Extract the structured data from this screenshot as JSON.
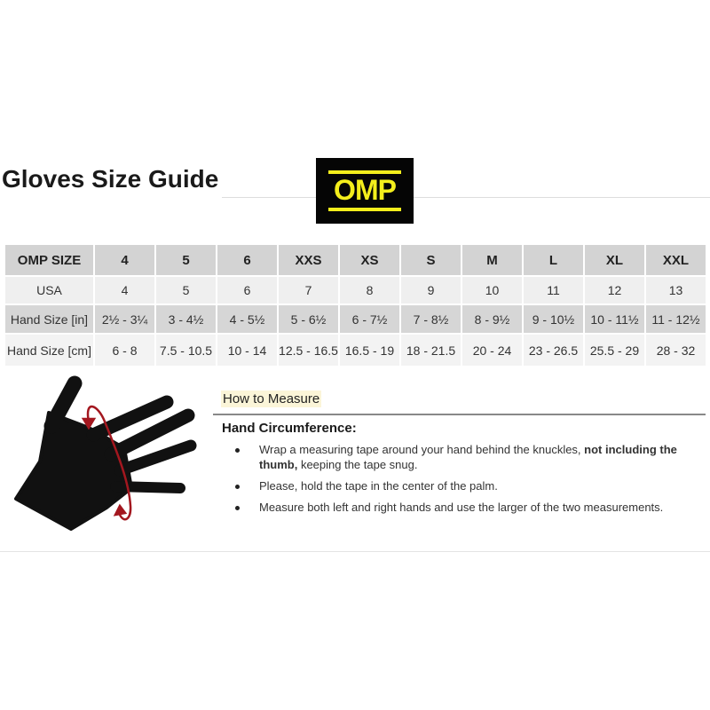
{
  "title": "Gloves Size Guide",
  "logo": {
    "text": "OMP",
    "bg": "#050505",
    "color": "#f4ee1c"
  },
  "table": {
    "header": [
      "OMP SIZE",
      "4",
      "5",
      "6",
      "XXS",
      "XS",
      "S",
      "M",
      "L",
      "XL",
      "XXL"
    ],
    "rows": [
      [
        "USA",
        "4",
        "5",
        "6",
        "7",
        "8",
        "9",
        "10",
        "11",
        "12",
        "13"
      ],
      [
        "Hand Size [in]",
        "2½ - 3¼",
        "3 - 4½",
        "4 - 5½",
        "5 - 6½",
        "6 - 7½",
        "7 - 8½",
        "8 - 9½",
        "9 - 10½",
        "10 - 11½",
        "11 - 12½"
      ],
      [
        "Hand Size [cm]",
        "6 - 8",
        "7.5 - 10.5",
        "10 - 14",
        "12.5 - 16.5",
        "16.5 - 19",
        "18 - 21.5",
        "20 - 24",
        "23 - 26.5",
        "25.5 - 29",
        "28 - 32"
      ]
    ]
  },
  "how_to": {
    "heading": "How to Measure",
    "subheading": "Hand Circumference:",
    "bullets": [
      {
        "text": "Wrap a measuring tape around your hand behind the knuckles, ",
        "bold": "not including the thumb,",
        "rest": " keeping the tape snug."
      },
      {
        "text": "Please, hold the tape in the center of the palm."
      },
      {
        "text": "Measure both left and right hands and use the larger of the two measurements."
      }
    ]
  },
  "colors": {
    "hand": "#111111",
    "tape": "#a3171f",
    "highlight": "#fbf5d8"
  }
}
